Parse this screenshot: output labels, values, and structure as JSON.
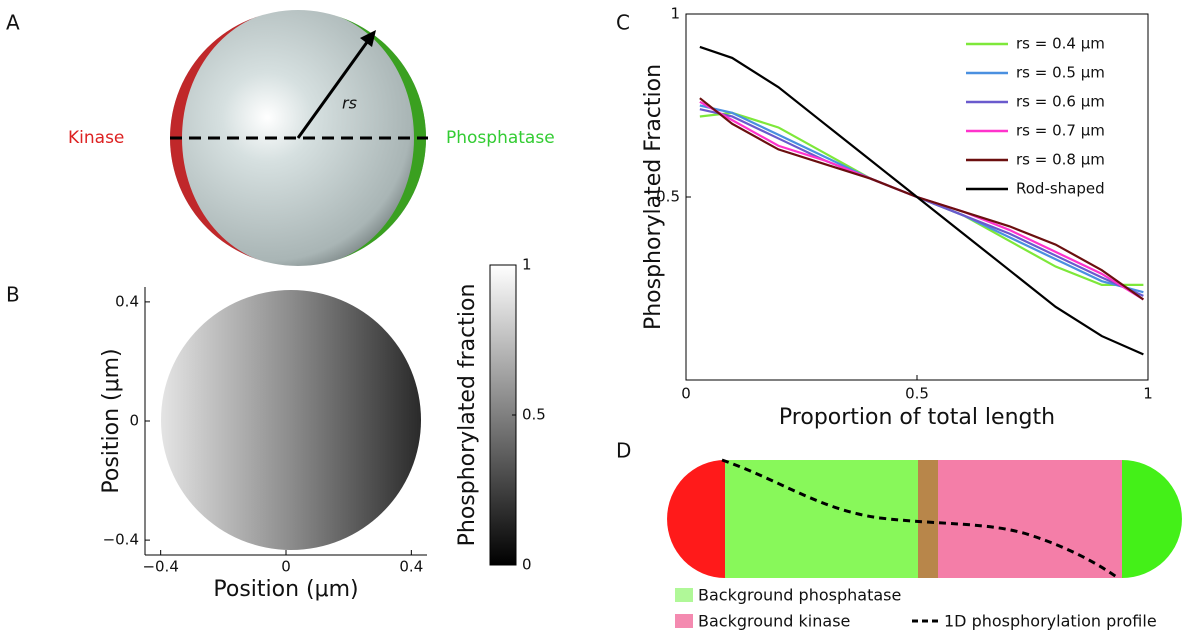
{
  "panel_labels": [
    "A",
    "B",
    "C",
    "D"
  ],
  "panel_a": {
    "left_label": "Kinase",
    "right_label": "Phosphatase",
    "radius_label": "rs"
  },
  "chart_data": [
    {
      "type": "heatmap",
      "x_label": "Position (μm)",
      "y_label": "Position (μm)",
      "xlim": [
        -0.45,
        0.45
      ],
      "ylim": [
        -0.45,
        0.45
      ],
      "xticks": [
        {
          "value": -0.4,
          "label": "−0.4"
        },
        0,
        0.4
      ],
      "yticks": [
        {
          "value": -0.4,
          "label": "−0.4"
        },
        0,
        0.4
      ],
      "colorbar_label": "Phosphorylated fraction",
      "colorbar_lim": [
        0,
        1
      ],
      "colorbar_ticks": [
        0,
        0.5,
        1
      ]
    },
    {
      "type": "line",
      "x_label": "Proportion of total length",
      "y_label": "Phosphorylated Fraction",
      "x": [
        0.03,
        0.1,
        0.2,
        0.3,
        0.4,
        0.5,
        0.6,
        0.7,
        0.8,
        0.9,
        0.99
      ],
      "series": [
        {
          "name": "rs = 0.4 μm",
          "color": "#7ee83a",
          "values": [
            0.72,
            0.73,
            0.69,
            0.62,
            0.55,
            0.5,
            0.45,
            0.38,
            0.31,
            0.26,
            0.26
          ]
        },
        {
          "name": "rs = 0.5 μm",
          "color": "#4a90e0",
          "values": [
            0.75,
            0.73,
            0.67,
            0.61,
            0.55,
            0.5,
            0.45,
            0.39,
            0.33,
            0.27,
            0.24
          ]
        },
        {
          "name": "rs = 0.6 μm",
          "color": "#6a5acd",
          "values": [
            0.74,
            0.72,
            0.66,
            0.6,
            0.55,
            0.5,
            0.45,
            0.4,
            0.34,
            0.28,
            0.23
          ]
        },
        {
          "name": "rs = 0.7 μm",
          "color": "#ff33cc",
          "values": [
            0.76,
            0.71,
            0.64,
            0.6,
            0.55,
            0.5,
            0.46,
            0.41,
            0.35,
            0.29,
            0.22
          ]
        },
        {
          "name": "rs = 0.8 μm",
          "color": "#6b0f0f",
          "values": [
            0.77,
            0.7,
            0.63,
            0.59,
            0.55,
            0.5,
            0.46,
            0.42,
            0.37,
            0.3,
            0.22
          ]
        },
        {
          "name": "Rod-shaped",
          "color": "#000000",
          "values": [
            0.91,
            0.88,
            0.8,
            0.7,
            0.6,
            0.5,
            0.4,
            0.3,
            0.2,
            0.12,
            0.07
          ]
        }
      ],
      "xlim": [
        0,
        1
      ],
      "ylim": [
        0,
        1
      ],
      "xticks": [
        0,
        0.5,
        1
      ],
      "yticks": [
        0.5,
        1
      ]
    }
  ],
  "panel_d": {
    "legend": [
      "Background phosphatase",
      "Background kinase",
      "1D phosphorylation profile"
    ]
  }
}
